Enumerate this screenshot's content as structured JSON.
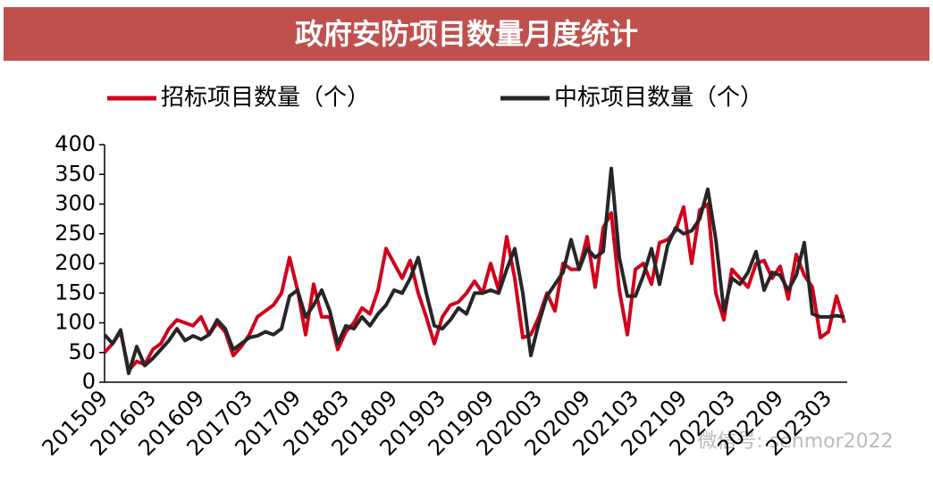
{
  "chart_data": {
    "type": "line",
    "title": "政府安防项目数量月度统计",
    "categories": [
      "201509",
      null,
      null,
      null,
      null,
      null,
      "201603",
      null,
      null,
      null,
      null,
      null,
      "201609",
      null,
      null,
      null,
      null,
      null,
      "201703",
      null,
      null,
      null,
      null,
      null,
      "201709",
      null,
      null,
      null,
      null,
      null,
      "201803",
      null,
      null,
      null,
      null,
      null,
      "201809",
      null,
      null,
      null,
      null,
      null,
      "201903",
      null,
      null,
      null,
      null,
      null,
      "201909",
      null,
      null,
      null,
      null,
      null,
      "202003",
      null,
      null,
      null,
      null,
      null,
      "202009",
      null,
      null,
      null,
      null,
      null,
      "202103",
      null,
      null,
      null,
      null,
      null,
      "202109",
      null,
      null,
      null,
      null,
      null,
      "202203",
      null,
      null,
      null,
      null,
      null,
      "202209",
      null,
      null,
      null,
      null,
      null,
      "202303",
      null,
      null
    ],
    "series": [
      {
        "name": "招标项目数量（个）",
        "color": "#d0021b",
        "values": [
          50,
          65,
          85,
          20,
          35,
          30,
          55,
          65,
          90,
          105,
          100,
          95,
          110,
          80,
          100,
          85,
          45,
          60,
          80,
          110,
          120,
          130,
          150,
          210,
          155,
          80,
          165,
          110,
          110,
          55,
          85,
          100,
          125,
          115,
          155,
          225,
          200,
          175,
          205,
          150,
          110,
          65,
          110,
          130,
          135,
          150,
          170,
          150,
          200,
          155,
          245,
          175,
          75,
          80,
          110,
          150,
          120,
          200,
          190,
          190,
          245,
          160,
          260,
          285,
          155,
          80,
          190,
          200,
          165,
          235,
          240,
          255,
          295,
          200,
          290,
          300,
          150,
          105,
          190,
          175,
          160,
          200,
          205,
          175,
          195,
          140,
          215,
          180,
          160,
          75,
          85,
          145,
          100
        ]
      },
      {
        "name": "中标项目数量（个）",
        "color": "#262626",
        "values": [
          80,
          65,
          88,
          15,
          60,
          28,
          40,
          55,
          70,
          90,
          70,
          78,
          72,
          80,
          105,
          90,
          55,
          65,
          75,
          78,
          85,
          80,
          90,
          145,
          155,
          110,
          130,
          155,
          120,
          65,
          95,
          90,
          110,
          95,
          115,
          130,
          155,
          150,
          175,
          210,
          150,
          95,
          90,
          105,
          125,
          115,
          150,
          150,
          155,
          150,
          190,
          225,
          150,
          45,
          100,
          145,
          165,
          185,
          240,
          190,
          225,
          210,
          220,
          360,
          210,
          145,
          145,
          180,
          225,
          165,
          230,
          260,
          250,
          255,
          275,
          325,
          240,
          120,
          175,
          165,
          185,
          220,
          155,
          185,
          180,
          155,
          180,
          235,
          115,
          110,
          110,
          112,
          110
        ]
      }
    ],
    "ylim": [
      0,
      400
    ],
    "yticks": [
      0,
      50,
      100,
      150,
      200,
      250,
      300,
      350,
      400
    ],
    "watermark": "微信号: senmor2022"
  }
}
